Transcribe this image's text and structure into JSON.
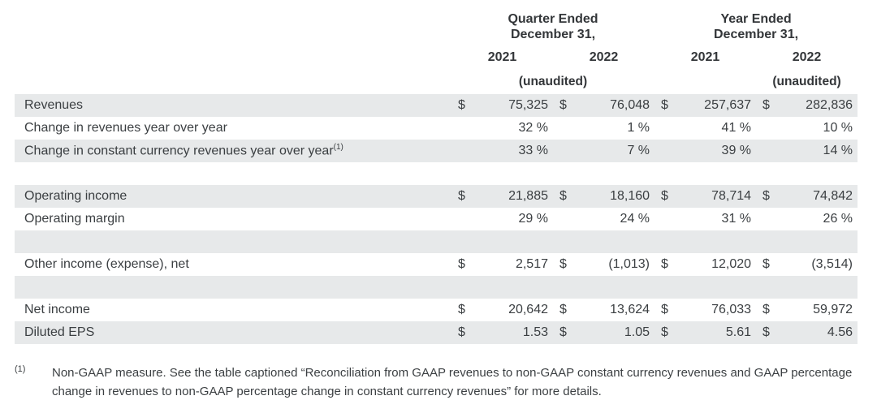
{
  "header": {
    "quarter_group": {
      "line1": "Quarter Ended",
      "line2": "December 31,"
    },
    "year_group": {
      "line1": "Year Ended",
      "line2": "December 31,"
    },
    "year_labels": [
      "2021",
      "2022",
      "2021",
      "2022"
    ],
    "unaudited_quarter": "(unaudited)",
    "unaudited_year": "(unaudited)"
  },
  "table": {
    "dollar_sign": "$",
    "rows": [
      {
        "label": "Revenues",
        "superscript": "",
        "type": "money",
        "shaded": true,
        "values": [
          "75,325",
          "76,048",
          "257,637",
          "282,836"
        ]
      },
      {
        "label": "Change in revenues year over year",
        "superscript": "",
        "type": "percent",
        "shaded": false,
        "values": [
          "32 %",
          "1 %",
          "41 %",
          "10 %"
        ]
      },
      {
        "label": "Change in constant currency revenues year over year",
        "superscript": "(1)",
        "type": "percent",
        "shaded": true,
        "values": [
          "33 %",
          "7 %",
          "39 %",
          "14 %"
        ]
      },
      {
        "type": "spacer",
        "shaded": false
      },
      {
        "label": "Operating income",
        "superscript": "",
        "type": "money",
        "shaded": true,
        "values": [
          "21,885",
          "18,160",
          "78,714",
          "74,842"
        ]
      },
      {
        "label": "Operating margin",
        "superscript": "",
        "type": "percent",
        "shaded": false,
        "values": [
          "29 %",
          "24 %",
          "31 %",
          "26 %"
        ]
      },
      {
        "type": "spacer",
        "shaded": true
      },
      {
        "label": "Other income (expense), net",
        "superscript": "",
        "type": "money",
        "shaded": false,
        "values": [
          "2,517",
          "(1,013)",
          "12,020",
          "(3,514)"
        ]
      },
      {
        "type": "spacer",
        "shaded": true
      },
      {
        "label": "Net income",
        "superscript": "",
        "type": "money",
        "shaded": false,
        "values": [
          "20,642",
          "13,624",
          "76,033",
          "59,972"
        ]
      },
      {
        "label": "Diluted EPS",
        "superscript": "",
        "type": "money",
        "shaded": true,
        "values": [
          "1.53",
          "1.05",
          "5.61",
          "4.56"
        ]
      }
    ]
  },
  "footnote": {
    "marker": "(1)",
    "text": "Non-GAAP measure. See the table captioned “Reconciliation from GAAP revenues to non-GAAP constant currency revenues and GAAP percentage change in revenues to non-GAAP percentage change in constant currency revenues” for more details."
  },
  "colors": {
    "band": "#e7e9ea",
    "text": "#3b3f42"
  }
}
